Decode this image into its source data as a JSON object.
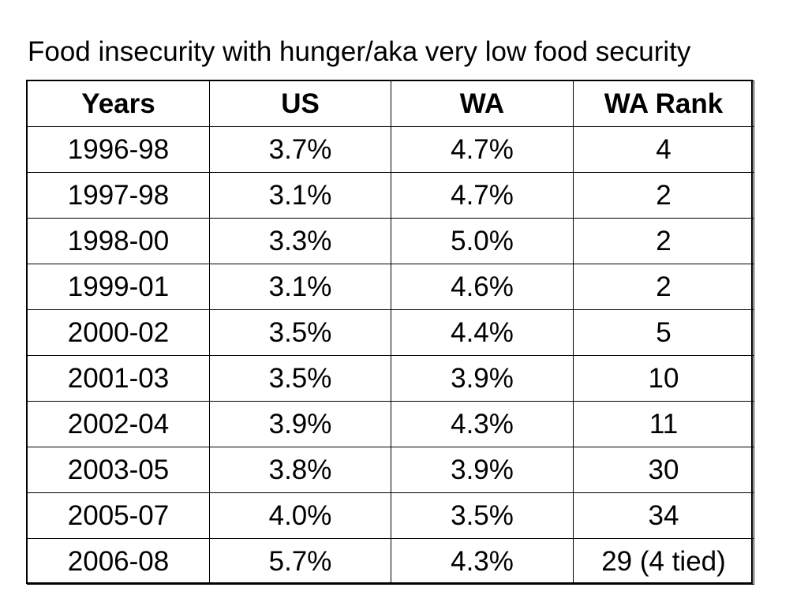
{
  "title": "Food insecurity with hunger/aka very low food security",
  "table": {
    "headers": [
      "Years",
      "US",
      "WA",
      "WA Rank"
    ],
    "rows": [
      [
        "1996-98",
        "3.7%",
        "4.7%",
        "4"
      ],
      [
        "1997-98",
        "3.1%",
        "4.7%",
        "2"
      ],
      [
        "1998-00",
        "3.3%",
        "5.0%",
        "2"
      ],
      [
        "1999-01",
        "3.1%",
        "4.6%",
        "2"
      ],
      [
        "2000-02",
        "3.5%",
        "4.4%",
        "5"
      ],
      [
        "2001-03",
        "3.5%",
        "3.9%",
        "10"
      ],
      [
        "2002-04",
        "3.9%",
        "4.3%",
        "11"
      ],
      [
        "2003-05",
        "3.8%",
        "3.9%",
        "30"
      ],
      [
        "2005-07",
        "4.0%",
        "3.5%",
        "34"
      ],
      [
        "2006-08",
        "5.7%",
        "4.3%",
        "29 (4 tied)"
      ]
    ]
  }
}
